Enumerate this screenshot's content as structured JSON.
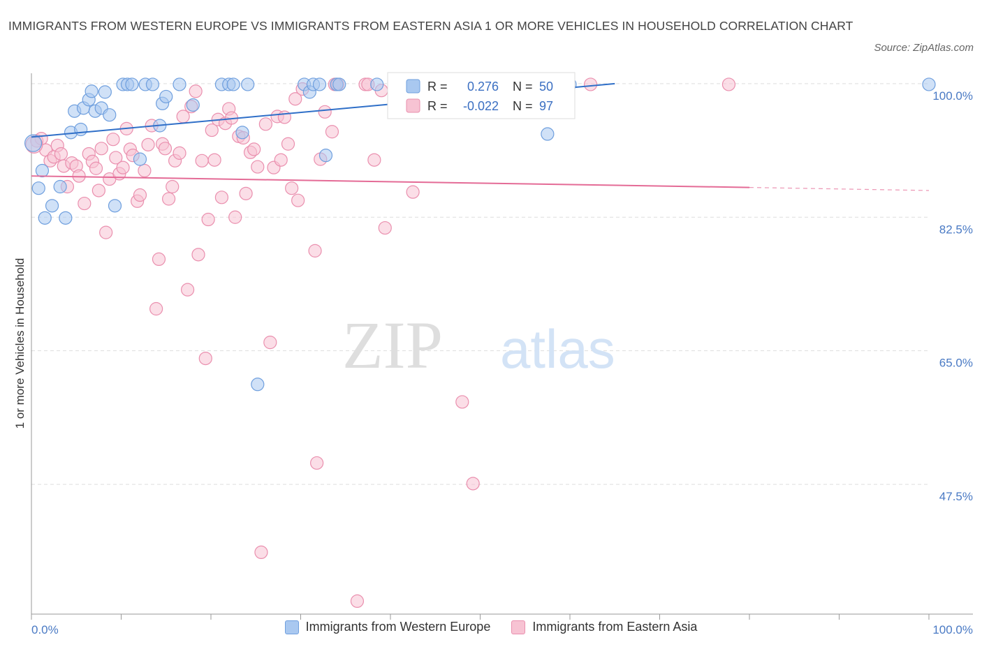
{
  "title": "IMMIGRANTS FROM WESTERN EUROPE VS IMMIGRANTS FROM EASTERN ASIA 1 OR MORE VEHICLES IN HOUSEHOLD CORRELATION CHART",
  "source": "Source: ZipAtlas.com",
  "watermark_zip": "ZIP",
  "watermark_atlas": "atlas",
  "colors": {
    "blue_fill": "#a9c8f0",
    "blue_stroke": "#6f9fde",
    "blue_line": "#2f6fc8",
    "pink_fill": "#f7c3d3",
    "pink_stroke": "#ea8fae",
    "pink_line": "#e46b96",
    "grid": "#dddddd",
    "tick_text": "#4a7ac4"
  },
  "legend": {
    "blue": {
      "r_label": "R =",
      "r_value": "0.276",
      "n_label": "N =",
      "n_value": "50"
    },
    "pink": {
      "r_label": "R =",
      "r_value": "-0.022",
      "n_label": "N =",
      "n_value": "97"
    }
  },
  "chart_data": {
    "type": "scatter",
    "title": "IMMIGRANTS FROM WESTERN EUROPE VS IMMIGRANTS FROM EASTERN ASIA 1 OR MORE VEHICLES IN HOUSEHOLD CORRELATION CHART",
    "xlabel": "",
    "ylabel": "1 or more Vehicles in Household",
    "xlim": [
      0,
      100
    ],
    "ylim": [
      30.5,
      100.9
    ],
    "x_ticks": [
      "0.0%",
      "100.0%"
    ],
    "y_ticks": [
      {
        "value": 100.0,
        "label": "100.0%"
      },
      {
        "value": 82.5,
        "label": "82.5%"
      },
      {
        "value": 65.0,
        "label": "65.0%"
      },
      {
        "value": 47.5,
        "label": "47.5%"
      }
    ],
    "grid": true,
    "legend_position": "top-center",
    "series": [
      {
        "name": "Immigrants from Western Europe",
        "color": "#6f9fde",
        "trend": {
          "x": [
            0,
            65
          ],
          "y": [
            93.0,
            100.0
          ]
        },
        "points": [
          [
            0.2,
            92.2
          ],
          [
            1.2,
            88.6
          ],
          [
            0.8,
            86.3
          ],
          [
            1.5,
            82.4
          ],
          [
            2.3,
            84.0
          ],
          [
            3.2,
            86.5
          ],
          [
            3.8,
            82.4
          ],
          [
            4.4,
            93.6
          ],
          [
            5.5,
            94.0
          ],
          [
            4.8,
            96.4
          ],
          [
            5.8,
            96.8
          ],
          [
            6.4,
            97.9
          ],
          [
            6.7,
            99.0
          ],
          [
            7.1,
            96.4
          ],
          [
            7.8,
            96.8
          ],
          [
            8.2,
            98.9
          ],
          [
            8.7,
            95.9
          ],
          [
            9.3,
            84.0
          ],
          [
            10.2,
            99.9
          ],
          [
            10.7,
            99.9
          ],
          [
            11.2,
            99.9
          ],
          [
            12.1,
            90.1
          ],
          [
            12.7,
            99.9
          ],
          [
            13.5,
            99.9
          ],
          [
            14.3,
            94.5
          ],
          [
            14.6,
            97.4
          ],
          [
            15.0,
            98.3
          ],
          [
            16.5,
            99.9
          ],
          [
            18.0,
            97.2
          ],
          [
            21.2,
            99.9
          ],
          [
            22.0,
            99.9
          ],
          [
            22.5,
            99.9
          ],
          [
            23.5,
            93.6
          ],
          [
            24.1,
            99.9
          ],
          [
            25.2,
            60.6
          ],
          [
            30.4,
            99.9
          ],
          [
            31.0,
            98.9
          ],
          [
            31.4,
            99.9
          ],
          [
            32.1,
            99.9
          ],
          [
            32.8,
            90.6
          ],
          [
            34.0,
            99.9
          ],
          [
            34.3,
            99.9
          ],
          [
            38.5,
            99.9
          ],
          [
            42.0,
            99.9
          ],
          [
            44.2,
            99.9
          ],
          [
            48.5,
            99.9
          ],
          [
            55.0,
            99.9
          ],
          [
            57.5,
            93.4
          ],
          [
            60.0,
            99.9
          ],
          [
            100.0,
            99.9
          ]
        ]
      },
      {
        "name": "Immigrants from Eastern Asia",
        "color": "#ea8fae",
        "trend": {
          "x": [
            0,
            80
          ],
          "y": [
            87.9,
            86.4
          ]
        },
        "trend_dashed": {
          "x": [
            80,
            100
          ],
          "y": [
            86.4,
            86.0
          ]
        },
        "points": [
          [
            0.6,
            92.5
          ],
          [
            1.1,
            92.8
          ],
          [
            1.6,
            91.3
          ],
          [
            2.1,
            89.9
          ],
          [
            2.5,
            90.4
          ],
          [
            2.9,
            91.9
          ],
          [
            3.3,
            90.8
          ],
          [
            3.6,
            89.2
          ],
          [
            4.0,
            86.5
          ],
          [
            4.5,
            89.6
          ],
          [
            5.0,
            89.2
          ],
          [
            5.3,
            87.9
          ],
          [
            5.9,
            84.3
          ],
          [
            6.4,
            90.8
          ],
          [
            6.8,
            89.8
          ],
          [
            7.2,
            88.9
          ],
          [
            7.5,
            86.0
          ],
          [
            7.8,
            91.5
          ],
          [
            8.3,
            80.5
          ],
          [
            8.7,
            87.5
          ],
          [
            9.1,
            92.7
          ],
          [
            9.4,
            90.3
          ],
          [
            9.8,
            88.2
          ],
          [
            10.2,
            89.0
          ],
          [
            10.6,
            94.1
          ],
          [
            11.0,
            91.4
          ],
          [
            11.3,
            90.6
          ],
          [
            11.8,
            84.6
          ],
          [
            12.1,
            85.4
          ],
          [
            12.6,
            88.6
          ],
          [
            13.0,
            92.0
          ],
          [
            13.4,
            94.5
          ],
          [
            13.9,
            70.5
          ],
          [
            14.2,
            77.0
          ],
          [
            14.6,
            92.1
          ],
          [
            14.9,
            91.5
          ],
          [
            15.3,
            84.9
          ],
          [
            15.7,
            86.5
          ],
          [
            16.0,
            89.9
          ],
          [
            16.5,
            90.9
          ],
          [
            16.9,
            95.7
          ],
          [
            17.4,
            73.0
          ],
          [
            17.8,
            97.0
          ],
          [
            18.3,
            99.0
          ],
          [
            18.6,
            77.6
          ],
          [
            19.0,
            89.9
          ],
          [
            19.4,
            64.0
          ],
          [
            19.7,
            82.2
          ],
          [
            20.1,
            93.9
          ],
          [
            20.4,
            90.0
          ],
          [
            20.8,
            95.3
          ],
          [
            21.2,
            85.1
          ],
          [
            21.6,
            94.8
          ],
          [
            22.0,
            96.7
          ],
          [
            22.3,
            95.5
          ],
          [
            22.7,
            82.5
          ],
          [
            23.1,
            93.1
          ],
          [
            23.6,
            92.9
          ],
          [
            23.9,
            85.6
          ],
          [
            24.4,
            91.0
          ],
          [
            24.8,
            91.4
          ],
          [
            25.2,
            89.1
          ],
          [
            25.6,
            38.6
          ],
          [
            26.1,
            94.7
          ],
          [
            26.6,
            66.1
          ],
          [
            27.0,
            89.0
          ],
          [
            27.4,
            95.7
          ],
          [
            27.8,
            90.0
          ],
          [
            28.2,
            95.6
          ],
          [
            28.6,
            92.1
          ],
          [
            29.0,
            86.3
          ],
          [
            29.4,
            98.0
          ],
          [
            29.7,
            84.7
          ],
          [
            30.2,
            99.3
          ],
          [
            31.6,
            78.1
          ],
          [
            31.8,
            50.3
          ],
          [
            32.2,
            90.1
          ],
          [
            32.7,
            96.3
          ],
          [
            33.5,
            93.7
          ],
          [
            33.8,
            99.9
          ],
          [
            34.1,
            99.9
          ],
          [
            36.3,
            32.2
          ],
          [
            37.2,
            99.9
          ],
          [
            37.5,
            99.9
          ],
          [
            38.2,
            90.0
          ],
          [
            39.0,
            99.1
          ],
          [
            39.4,
            81.1
          ],
          [
            42.0,
            99.9
          ],
          [
            42.5,
            85.8
          ],
          [
            48.0,
            58.3
          ],
          [
            49.2,
            47.6
          ],
          [
            49.6,
            99.9
          ],
          [
            53.0,
            99.9
          ],
          [
            55.0,
            99.9
          ],
          [
            62.3,
            99.9
          ],
          [
            77.7,
            99.9
          ],
          [
            0.3,
            92.0
          ]
        ]
      }
    ]
  },
  "bottom_legend": {
    "blue_label": "Immigrants from Western Europe",
    "pink_label": "Immigrants from Eastern Asia"
  }
}
